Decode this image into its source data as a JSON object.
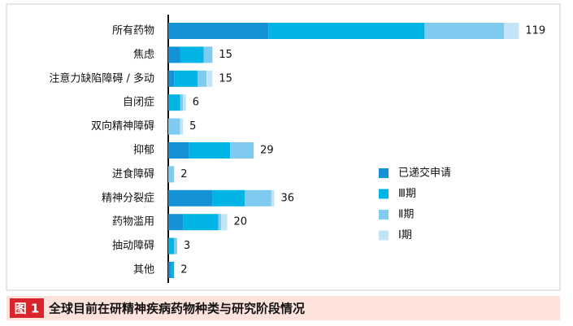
{
  "chart_data": {
    "type": "stacked-hbar",
    "categories": [
      "所有药物",
      "焦虑",
      "注意力缺陷障碍 / 多动",
      "自闭症",
      "双向精神障碍",
      "抑郁",
      "进食障碍",
      "精神分裂症",
      "药物滥用",
      "抽动障碍",
      "其他"
    ],
    "series": [
      {
        "name": "已递交申请",
        "color": "#1591d8",
        "values": [
          34,
          4,
          2,
          0,
          0,
          7,
          0,
          15,
          5,
          0,
          1
        ]
      },
      {
        "name": "Ⅲ期",
        "color": "#00b4e6",
        "values": [
          53,
          8,
          8,
          4,
          0,
          14,
          0,
          11,
          12,
          2,
          1
        ]
      },
      {
        "name": "Ⅱ期",
        "color": "#7fcbef",
        "values": [
          27,
          3,
          3,
          1,
          4,
          8,
          2,
          9,
          1,
          1,
          0
        ]
      },
      {
        "name": "Ⅰ期",
        "color": "#c2e4f7",
        "values": [
          5,
          0,
          2,
          1,
          1,
          0,
          0,
          1,
          2,
          0,
          0
        ]
      }
    ],
    "totals": [
      119,
      15,
      15,
      6,
      5,
      29,
      2,
      36,
      20,
      3,
      2
    ],
    "xlim": [
      0,
      120
    ],
    "figure_label": "图 1",
    "caption": "全球目前在研精神疾病药物种类与研究阶段情况"
  }
}
